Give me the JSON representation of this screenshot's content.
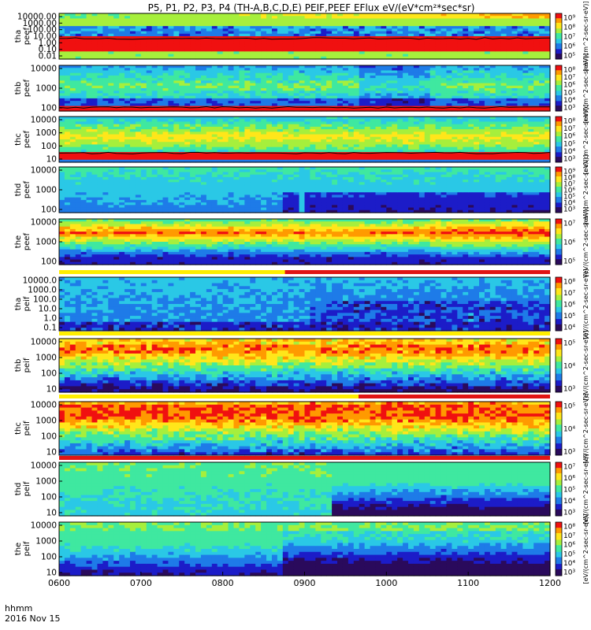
{
  "title": "P5, P1, P2, P3, P4 (TH-A,B,C,D,E) PEIF,PEEF EFlux eV/(eV*cm²*sec*sr)",
  "colors": {
    "palette": [
      "#2a0a5c",
      "#1c1cc8",
      "#1e7be8",
      "#2ac8e6",
      "#3fe8a0",
      "#a6ef3c",
      "#ffe61a",
      "#ff9a00",
      "#f01010"
    ],
    "flag_red": "#e01414",
    "flag_yellow": "#ffee00",
    "trace": "#000000"
  },
  "chart_data": {
    "type": "heatmap",
    "x_axis": {
      "ticks": [
        "0600",
        "0700",
        "0800",
        "0900",
        "1000",
        "1100",
        "1200"
      ],
      "corner_label_1": "hhmm",
      "corner_label_2": "2016 Nov 15"
    },
    "panels": [
      {
        "ylabel": [
          "tha",
          "peef"
        ],
        "yticks": [
          "10000.00",
          "1000.00",
          "100.00",
          "10.00",
          "1.00",
          "0.10",
          "0.01"
        ],
        "cbar": [
          "10⁹",
          "10⁸",
          "10⁷",
          "10⁶",
          "10⁵"
        ],
        "cbar_title": "[eV/(cm^2-sec-sr-eV)]",
        "pattern": "tha_peef"
      },
      {
        "ylabel": [
          "thb",
          "peef"
        ],
        "yticks": [
          "10000",
          "1000",
          "100"
        ],
        "cbar": [
          "10⁸",
          "10⁷",
          "10⁶",
          "10⁵",
          "10⁴",
          "10³"
        ],
        "cbar_title": "[eV/(cm^2-sec-sr-eV)]",
        "pattern": "thb_peef"
      },
      {
        "ylabel": [
          "thc",
          "peef"
        ],
        "yticks": [
          "10000",
          "1000",
          "100",
          "10"
        ],
        "cbar": [
          "10⁸",
          "10⁷",
          "10⁶",
          "10⁵",
          "10⁴",
          "10³"
        ],
        "cbar_title": "[eV/(cm^2-sec-sr-eV)]",
        "pattern": "thc_peef"
      },
      {
        "ylabel": [
          "thd",
          "peef"
        ],
        "yticks": [
          "10000",
          "1000",
          "100"
        ],
        "cbar": [
          "10⁹",
          "10⁸",
          "10⁷",
          "10⁶",
          "10⁵",
          "10⁴",
          "10³"
        ],
        "cbar_title": "[eV/(cm^2-sec-sr-eV)]",
        "pattern": "thd_peef"
      },
      {
        "ylabel": [
          "the",
          "peef"
        ],
        "yticks": [
          "10000",
          "1000",
          "100"
        ],
        "cbar": [
          "10⁷",
          "10⁶",
          "10⁵"
        ],
        "cbar_title": "[eV/(cm^2-sec-sr-eV)]",
        "pattern": "the_peef"
      },
      {
        "ylabel": [
          "tha",
          "peif"
        ],
        "yticks": [
          "10000.0",
          "1000.0",
          "100.0",
          "10.0",
          "1.0",
          "0.1"
        ],
        "cbar": [
          "10⁸",
          "10⁷",
          "10⁶",
          "10⁵",
          "10⁴"
        ],
        "cbar_title": "[eV/(cm^2-sec-sr-eV)]",
        "pattern": "tha_peif"
      },
      {
        "ylabel": [
          "thb",
          "peif"
        ],
        "yticks": [
          "10000",
          "1000",
          "100",
          "10"
        ],
        "cbar": [
          "10⁵",
          "10⁴",
          "10³"
        ],
        "cbar_title": "[eV/(cm^2-sec-sr-eV)]",
        "pattern": "thb_peif"
      },
      {
        "ylabel": [
          "thc",
          "peif"
        ],
        "yticks": [
          "10000",
          "1000",
          "100",
          "10"
        ],
        "cbar": [
          "10⁵",
          "10⁴",
          "10³"
        ],
        "cbar_title": "[eV/(cm^2-sec-sr-eV)]",
        "pattern": "thc_peif"
      },
      {
        "ylabel": [
          "thd",
          "peif"
        ],
        "yticks": [
          "10000",
          "1000",
          "100",
          "10"
        ],
        "cbar": [
          "10⁷",
          "10⁶",
          "10⁵",
          "10⁴",
          "10³"
        ],
        "cbar_title": "[eV/(cm^2-sec-sr-eV)]",
        "pattern": "thd_peif"
      },
      {
        "ylabel": [
          "the",
          "peif"
        ],
        "yticks": [
          "10000",
          "1000",
          "100",
          "10"
        ],
        "cbar": [
          "10⁸",
          "10⁷",
          "10⁶",
          "10⁵",
          "10⁴",
          "10³"
        ],
        "cbar_title": "[eV/(cm^2-sec-sr-eV)]",
        "pattern": "the_peif"
      }
    ],
    "flag_bars": [
      {
        "after_panel": 4,
        "red_from": "0830",
        "red_to": "1200"
      },
      {
        "after_panel": 5,
        "red_from": "",
        "red_to": ""
      },
      {
        "after_panel": 7,
        "red_from": "0940",
        "red_to": "1200"
      },
      {
        "after_panel": 8,
        "red_from": "0600",
        "red_to": "1200"
      }
    ]
  }
}
